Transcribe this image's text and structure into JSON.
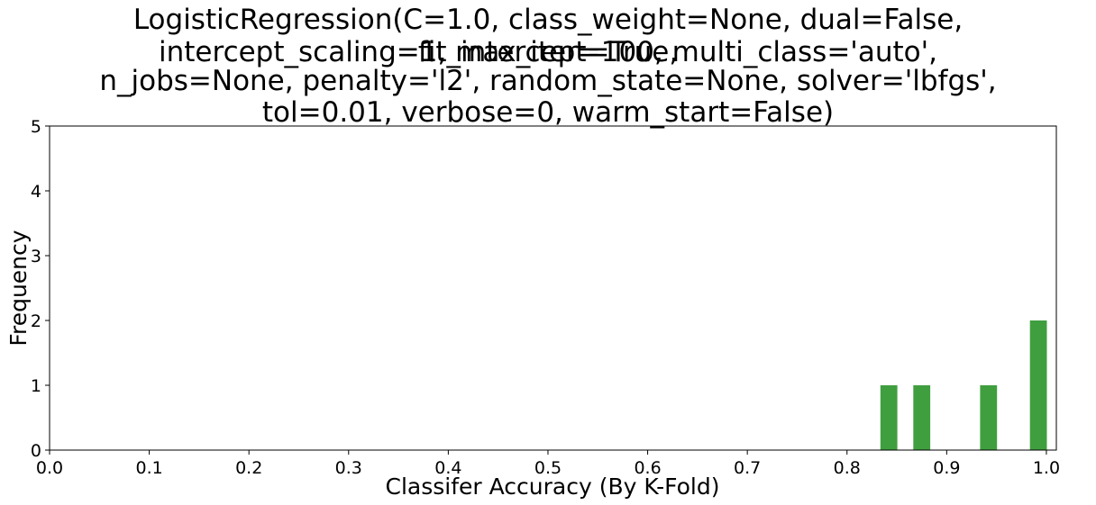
{
  "chart_data": {
    "type": "bar",
    "title_lines": [
      "LogisticRegression(C=1.0, class_weight=None, dual=False, fit_intercept=True,",
      "intercept_scaling=1, max_iter=100, multi_class='auto',",
      "n_jobs=None, penalty='l2', random_state=None, solver='lbfgs',",
      "tol=0.01, verbose=0, warm_start=False)"
    ],
    "xlabel": "Classifer Accuracy (By K-Fold)",
    "ylabel": "Frequency",
    "xlim": [
      0.0,
      1.01
    ],
    "ylim": [
      0,
      5
    ],
    "x_ticks": [
      "0.0",
      "0.1",
      "0.2",
      "0.3",
      "0.4",
      "0.5",
      "0.6",
      "0.7",
      "0.8",
      "0.9",
      "1.0"
    ],
    "y_ticks": [
      "0",
      "1",
      "2",
      "3",
      "4",
      "5"
    ],
    "bar_width": 0.017,
    "bars": [
      {
        "x": 0.842,
        "value": 1
      },
      {
        "x": 0.875,
        "value": 1
      },
      {
        "x": 0.942,
        "value": 1
      },
      {
        "x": 0.992,
        "value": 2
      }
    ],
    "bar_color": "#3f9f3f",
    "grid": false
  }
}
